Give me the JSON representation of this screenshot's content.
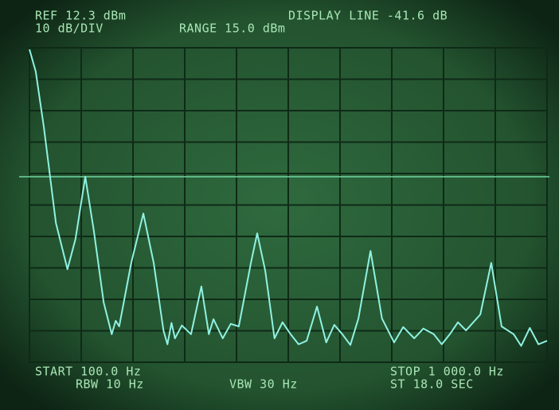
{
  "chart_data": {
    "type": "line",
    "annotations": [
      "REF 12.3 dBm",
      "10 dB/DIV",
      "RANGE 15.0 dBm",
      "DISPLAY LINE -41.6 dB",
      "START 100.0 Hz",
      "RBW 10 Hz",
      "VBW 30 Hz",
      "STOP 1 000.0 Hz",
      "ST 18.0 SEC"
    ],
    "xlim": [
      100,
      1000
    ],
    "ylim": [
      -87.7,
      12.3
    ],
    "grid": true,
    "color": "#8ff2e2",
    "x": [
      100,
      111,
      125,
      146,
      166,
      180,
      197,
      212,
      229,
      243,
      250,
      256,
      277,
      298,
      316,
      333,
      340,
      347,
      353,
      365,
      381,
      399,
      412,
      420,
      436,
      450,
      464,
      485,
      496,
      510,
      526,
      540,
      554,
      568,
      582,
      600,
      616,
      630,
      644,
      658,
      672,
      693,
      713,
      734,
      750,
      769,
      785,
      803,
      817,
      831,
      845,
      859,
      884,
      903,
      921,
      942,
      955,
      970,
      985,
      1000
    ],
    "values": [
      11.8,
      4.7,
      -13.0,
      -43.4,
      -58.1,
      -48.5,
      -28.7,
      -46.0,
      -68.7,
      -78.8,
      -74.5,
      -76.3,
      -56.1,
      -40.4,
      -56.1,
      -77.6,
      -82.0,
      -75.2,
      -80.1,
      -76.0,
      -78.8,
      -63.6,
      -78.8,
      -74.0,
      -80.1,
      -75.5,
      -76.3,
      -56.1,
      -46.7,
      -58.6,
      -80.1,
      -75.0,
      -78.8,
      -82.0,
      -80.9,
      -70.0,
      -81.4,
      -75.8,
      -78.8,
      -82.2,
      -73.8,
      -52.3,
      -73.8,
      -81.4,
      -76.5,
      -80.1,
      -77.0,
      -78.8,
      -82.0,
      -78.8,
      -75.0,
      -77.6,
      -72.5,
      -56.1,
      -76.3,
      -78.8,
      -82.5,
      -76.8,
      -82.0,
      -80.9
    ]
  }
}
